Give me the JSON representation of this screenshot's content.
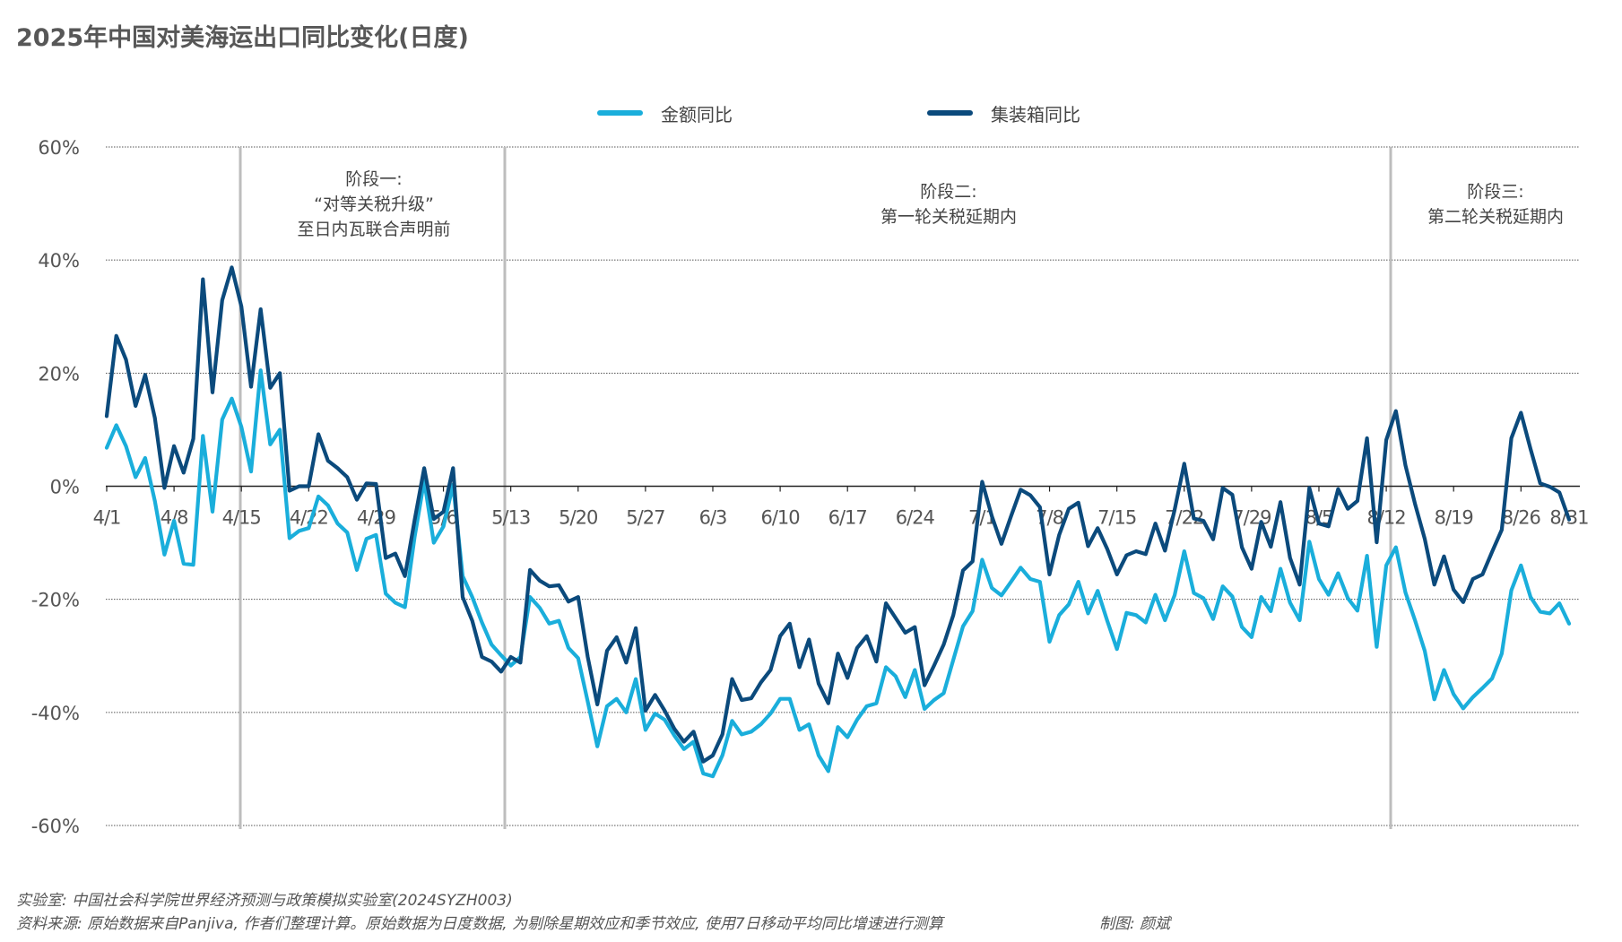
{
  "title": "2025年中国对美海运出口同比变化(日度)",
  "legend": [
    {
      "label": "金额同比",
      "color": "#1aaedb"
    },
    {
      "label": "集装箱同比",
      "color": "#0b4a7c"
    }
  ],
  "phases": [
    {
      "lines": [
        "阶段一:",
        "“对等关税升级”",
        "至日内瓦联合声明前"
      ],
      "start_date": "4/15"
    },
    {
      "lines": [
        "阶段二:",
        "第一轮关税延期内"
      ],
      "start_date": "5/12"
    },
    {
      "lines": [
        "阶段三:",
        "第二轮关税延期内"
      ],
      "start_date": "8/12"
    }
  ],
  "notes": {
    "lab": "实验室: 中国社会科学院世界经济预测与政策模拟实验室(2024SYZH003)",
    "source": "资料来源: 原始数据来自Panjiva, 作者们整理计算。原始数据为日度数据, 为剔除星期效应和季节效应, 使用7日移动平均同比增速进行测算",
    "credit": "制图: 颜斌"
  },
  "chart_data": {
    "type": "line",
    "title": "2025年中国对美海运出口同比变化(日度)",
    "xlabel": "",
    "ylabel": "",
    "x_start": "4/1",
    "x_end": "8/31",
    "x_ticks": [
      "4/1",
      "4/8",
      "4/15",
      "4/22",
      "4/29",
      "5/6",
      "5/13",
      "5/20",
      "5/27",
      "6/3",
      "6/10",
      "6/17",
      "6/24",
      "7/1",
      "7/8",
      "7/15",
      "7/22",
      "7/29",
      "8/5",
      "8/12",
      "8/19",
      "8/26",
      "8/31"
    ],
    "y_ticks": [
      60,
      40,
      20,
      0,
      -20,
      -40,
      -60
    ],
    "y_tick_labels": [
      "60%",
      "40%",
      "20%",
      "0%",
      "-20%",
      "-40%",
      "-60%"
    ],
    "ylim": [
      -60,
      60
    ],
    "grid": true,
    "legend_position": "top-center",
    "series": [
      {
        "name": "金额同比",
        "color": "#1aaedb",
        "values": [
          6.8,
          10.8,
          7.1,
          1.6,
          5.0,
          -2.6,
          -12.1,
          -6.1,
          -13.7,
          -13.9,
          8.9,
          -4.5,
          11.8,
          15.5,
          10.5,
          2.6,
          20.5,
          7.4,
          10.0,
          -9.2,
          -7.9,
          -7.4,
          -1.8,
          -3.4,
          -6.6,
          -8.2,
          -14.8,
          -9.3,
          -8.6,
          -19.0,
          -20.6,
          -21.4,
          -9.0,
          1.0,
          -10.0,
          -7.1,
          0.3,
          -15.9,
          -19.6,
          -24.1,
          -28.0,
          -29.9,
          -31.7,
          -30.2,
          -19.6,
          -21.5,
          -24.3,
          -23.8,
          -28.6,
          -30.4,
          -38.1,
          -46.0,
          -38.9,
          -37.6,
          -40.0,
          -34.1,
          -43.1,
          -40.2,
          -41.3,
          -44.1,
          -46.5,
          -45.2,
          -50.8,
          -51.3,
          -47.6,
          -41.5,
          -43.9,
          -43.4,
          -42.1,
          -40.2,
          -37.6,
          -37.6,
          -43.1,
          -42.1,
          -47.6,
          -50.4,
          -42.6,
          -44.4,
          -41.3,
          -38.9,
          -38.4,
          -32.0,
          -33.6,
          -37.3,
          -32.5,
          -39.4,
          -37.8,
          -36.6,
          -30.7,
          -24.8,
          -22.1,
          -13.0,
          -18.0,
          -19.3,
          -16.9,
          -14.4,
          -16.4,
          -16.9,
          -27.5,
          -22.8,
          -20.9,
          -16.9,
          -22.5,
          -18.5,
          -23.8,
          -28.8,
          -22.4,
          -22.8,
          -24.1,
          -19.2,
          -23.7,
          -19.3,
          -11.5,
          -18.9,
          -19.8,
          -23.5,
          -17.7,
          -19.5,
          -24.9,
          -26.7,
          -19.6,
          -22.1,
          -14.6,
          -20.6,
          -23.7,
          -9.8,
          -16.4,
          -19.2,
          -15.4,
          -19.8,
          -22.0,
          -12.3,
          -28.4,
          -14.0,
          -10.8,
          -18.8,
          -23.8,
          -29.1,
          -37.7,
          -32.5,
          -36.8,
          -39.3,
          -37.3,
          -35.7,
          -34.0,
          -29.6,
          -18.4,
          -14.0,
          -19.6,
          -22.2,
          -22.5,
          -20.7,
          -24.3
        ]
      },
      {
        "name": "集装箱同比",
        "color": "#0b4a7c",
        "values": [
          12.4,
          26.6,
          22.4,
          14.2,
          19.7,
          12.1,
          -0.3,
          7.1,
          2.4,
          8.4,
          36.6,
          16.6,
          32.9,
          38.7,
          31.8,
          17.6,
          31.3,
          17.4,
          20.0,
          -0.8,
          0.0,
          0.0,
          9.2,
          4.5,
          3.2,
          1.6,
          -2.4,
          0.5,
          0.4,
          -12.7,
          -11.9,
          -15.9,
          -6.0,
          3.2,
          -5.8,
          -4.5,
          3.2,
          -19.6,
          -23.8,
          -30.2,
          -31.0,
          -32.8,
          -30.2,
          -31.2,
          -14.8,
          -16.7,
          -17.7,
          -17.5,
          -20.4,
          -19.6,
          -30.2,
          -38.6,
          -29.1,
          -26.7,
          -31.2,
          -25.1,
          -39.7,
          -36.9,
          -39.7,
          -42.9,
          -45.2,
          -43.4,
          -48.7,
          -47.6,
          -43.9,
          -34.1,
          -37.8,
          -37.5,
          -34.7,
          -32.5,
          -26.5,
          -24.3,
          -32.0,
          -27.1,
          -34.9,
          -38.4,
          -29.6,
          -33.9,
          -28.6,
          -26.5,
          -31.0,
          -20.7,
          -23.3,
          -25.9,
          -24.9,
          -35.2,
          -31.7,
          -28.0,
          -22.8,
          -14.9,
          -13.3,
          0.8,
          -5.3,
          -10.2,
          -5.3,
          -0.6,
          -1.6,
          -3.7,
          -15.6,
          -8.6,
          -4.0,
          -2.9,
          -10.6,
          -7.4,
          -11.1,
          -15.6,
          -12.2,
          -11.5,
          -12.0,
          -6.6,
          -11.4,
          -4.2,
          4.0,
          -5.7,
          -6.1,
          -9.4,
          -0.3,
          -1.5,
          -10.8,
          -14.6,
          -6.3,
          -10.7,
          -2.8,
          -12.7,
          -17.4,
          -0.3,
          -6.6,
          -7.1,
          -0.5,
          -4.0,
          -2.6,
          8.5,
          -9.9,
          8.2,
          13.3,
          3.7,
          -3.2,
          -9.3,
          -17.4,
          -12.4,
          -18.3,
          -20.5,
          -16.4,
          -15.6,
          -11.6,
          -7.7,
          8.5,
          13.0,
          6.6,
          0.5,
          -0.1,
          -1.1,
          -5.9
        ]
      }
    ],
    "annotations": [
      {
        "text": "阶段一: “对等关税升级” 至日内瓦联合声明前",
        "divider_date": "4/15"
      },
      {
        "text": "阶段二: 第一轮关税延期内",
        "divider_date": "5/12"
      },
      {
        "text": "阶段三: 第二轮关税延期内",
        "divider_date": "8/12"
      }
    ]
  }
}
